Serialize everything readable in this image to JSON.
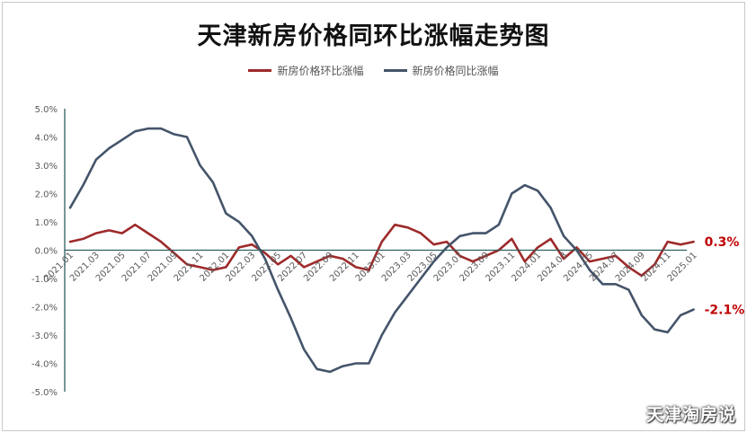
{
  "chart_data": {
    "type": "line",
    "title": "天津新房价格同环比涨幅走势图",
    "y_ticks": [
      "5.0%",
      "4.0%",
      "3.0%",
      "2.0%",
      "1.0%",
      "0.0%",
      "-1.0%",
      "-2.0%",
      "-3.0%",
      "-4.0%",
      "-5.0%"
    ],
    "ylim": [
      -5,
      5
    ],
    "x_tick_labels": [
      "2021.01",
      "2021.03",
      "2021.05",
      "2021.07",
      "2021.09",
      "2021.11",
      "2022.01",
      "2022.03",
      "2022.05",
      "2022.07",
      "2022.09",
      "2022.11",
      "2023.01",
      "2023.03",
      "2023.05",
      "2023.07",
      "2023.09",
      "2023.11",
      "2024.01",
      "2024.03",
      "2024.05",
      "2024.07",
      "2024.09",
      "2024.11",
      "2025.01"
    ],
    "legend_position": "top-center",
    "grid": false,
    "series": [
      {
        "name": "新房价格环比涨幅",
        "color": "#9e2a2b",
        "values": [
          0.3,
          0.4,
          0.6,
          0.7,
          0.6,
          0.9,
          0.6,
          0.3,
          -0.1,
          -0.5,
          -0.6,
          -0.7,
          -0.6,
          0.1,
          0.2,
          -0.1,
          -0.5,
          -0.2,
          -0.6,
          -0.4,
          -0.2,
          -0.3,
          -0.6,
          -0.7,
          0.3,
          0.9,
          0.8,
          0.6,
          0.2,
          0.3,
          -0.2,
          -0.4,
          -0.2,
          0.0,
          0.4,
          -0.4,
          0.1,
          0.4,
          -0.3,
          0.1,
          -0.4,
          -0.3,
          -0.2,
          -0.6,
          -0.9,
          -0.5,
          0.3,
          0.2,
          0.3
        ],
        "end_label": "0.3%"
      },
      {
        "name": "新房价格同比涨幅",
        "color": "#44546a",
        "values": [
          1.5,
          2.3,
          3.2,
          3.6,
          3.9,
          4.2,
          4.3,
          4.3,
          4.1,
          4.0,
          3.0,
          2.4,
          1.3,
          1.0,
          0.5,
          -0.3,
          -1.4,
          -2.4,
          -3.5,
          -4.2,
          -4.3,
          -4.1,
          -4.0,
          -4.0,
          -3.0,
          -2.2,
          -1.6,
          -1.0,
          -0.4,
          0.1,
          0.5,
          0.6,
          0.6,
          0.9,
          2.0,
          2.3,
          2.1,
          1.5,
          0.5,
          0.0,
          -0.7,
          -1.2,
          -1.2,
          -1.4,
          -2.3,
          -2.8,
          -2.9,
          -2.3,
          -2.1
        ],
        "end_label": "-2.1%"
      }
    ]
  },
  "watermark": "天津淘房说"
}
